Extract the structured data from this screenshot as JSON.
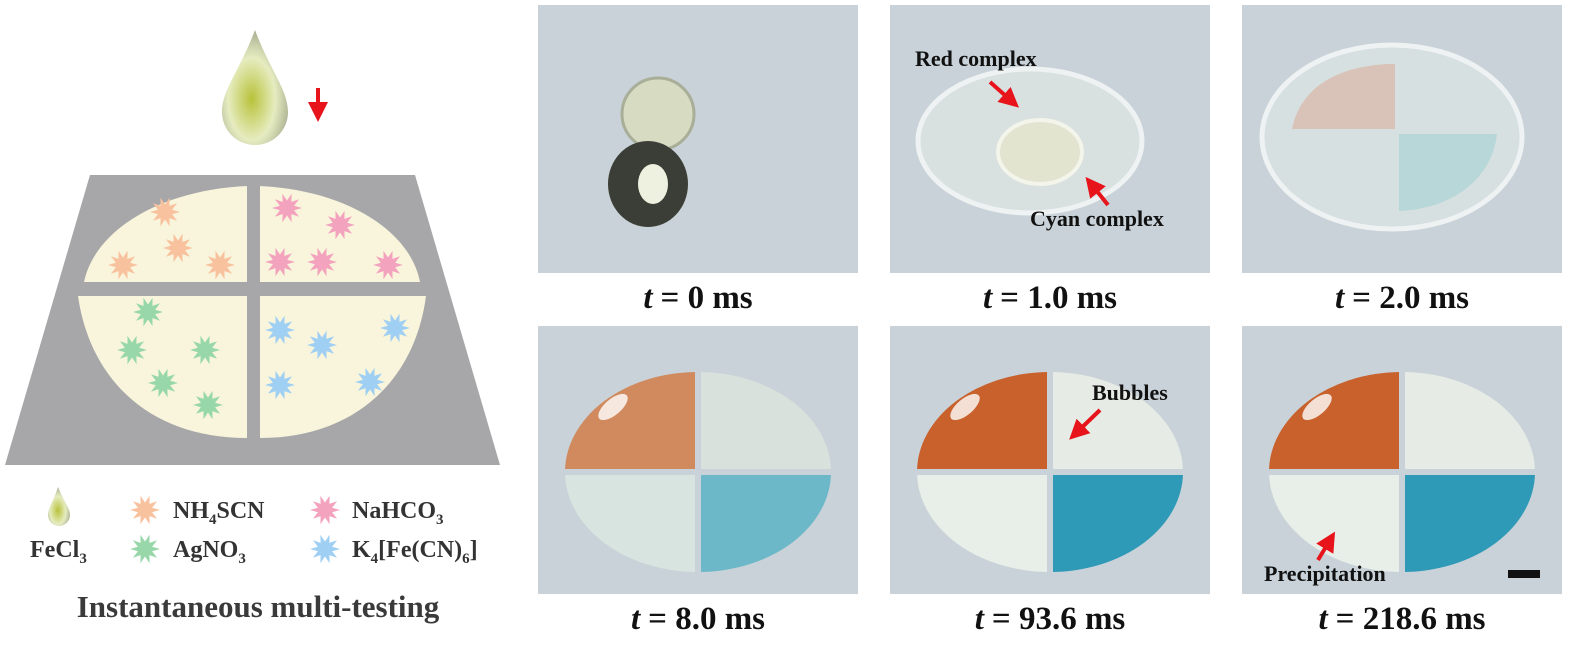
{
  "schematic": {
    "title": "Instantaneous multi-testing",
    "legend": [
      {
        "parts": [
          "FeCl",
          "3"
        ]
      },
      {
        "parts": [
          "NH",
          "4",
          "SCN"
        ]
      },
      {
        "parts": [
          "NaHCO",
          "3"
        ]
      },
      {
        "parts": [
          "AgNO",
          "3"
        ]
      },
      {
        "parts": [
          "K",
          "4",
          "[Fe(CN)",
          "6",
          "]"
        ]
      }
    ]
  },
  "panels": [
    {
      "var": "t",
      "time": "= 0 ms"
    },
    {
      "var": "t",
      "time": "= 1.0 ms",
      "annotations": [
        "Red complex",
        "Cyan complex"
      ]
    },
    {
      "var": "t",
      "time": "= 2.0 ms"
    },
    {
      "var": "t",
      "time": "= 8.0 ms"
    },
    {
      "var": "t",
      "time": "= 93.6 ms",
      "annotations": [
        "Bubbles"
      ]
    },
    {
      "var": "t",
      "time": "= 218.6 ms",
      "annotations": [
        "Precipitation"
      ]
    }
  ]
}
